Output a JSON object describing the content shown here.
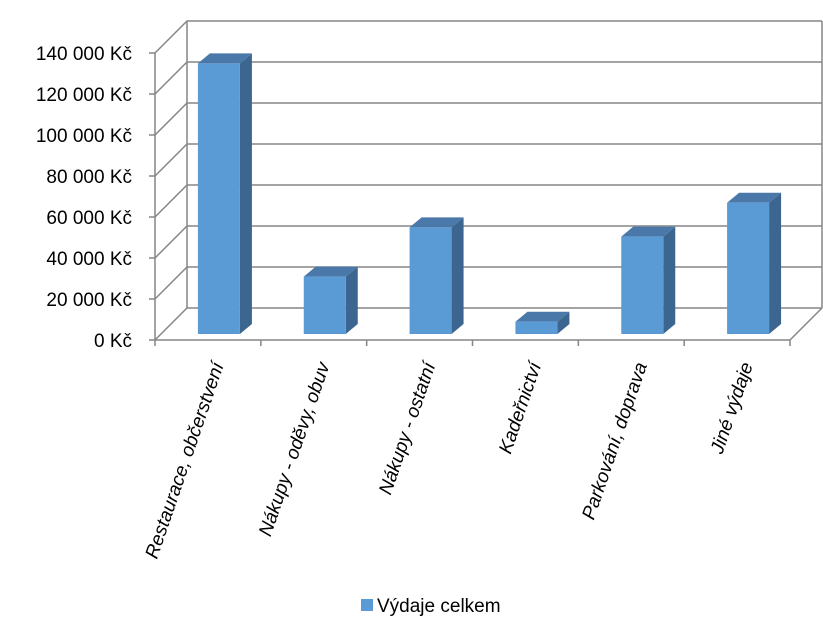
{
  "chart_data": {
    "type": "bar",
    "style": "3d-column",
    "categories": [
      "Restaurace, občerstvení",
      "Nákupy - oděvy, obuv",
      "Nákupy - ostatní",
      "Kadeřnictví",
      "Parkování, doprava",
      "Jiné výdaje"
    ],
    "series": [
      {
        "name": "Výdaje celkem",
        "values": [
          132000,
          28000,
          52000,
          6000,
          47500,
          64000
        ],
        "color": "#5b9bd5"
      }
    ],
    "ylim": [
      0,
      140000
    ],
    "yticks": [
      0,
      20000,
      40000,
      60000,
      80000,
      100000,
      120000,
      140000
    ],
    "ytick_labels": [
      "0 Kč",
      "20 000 Kč",
      "40 000 Kč",
      "60 000 Kč",
      "80 000 Kč",
      "100 000 Kč",
      "120 000 Kč",
      "140 000 Kč"
    ],
    "grid": true,
    "legend": {
      "position": "bottom",
      "label": "Výdaje celkem"
    },
    "colors": {
      "bar_front": "#5b9bd5",
      "bar_side": "#3c6690",
      "bar_top": "#4a78a8",
      "grid": "#868686"
    }
  }
}
